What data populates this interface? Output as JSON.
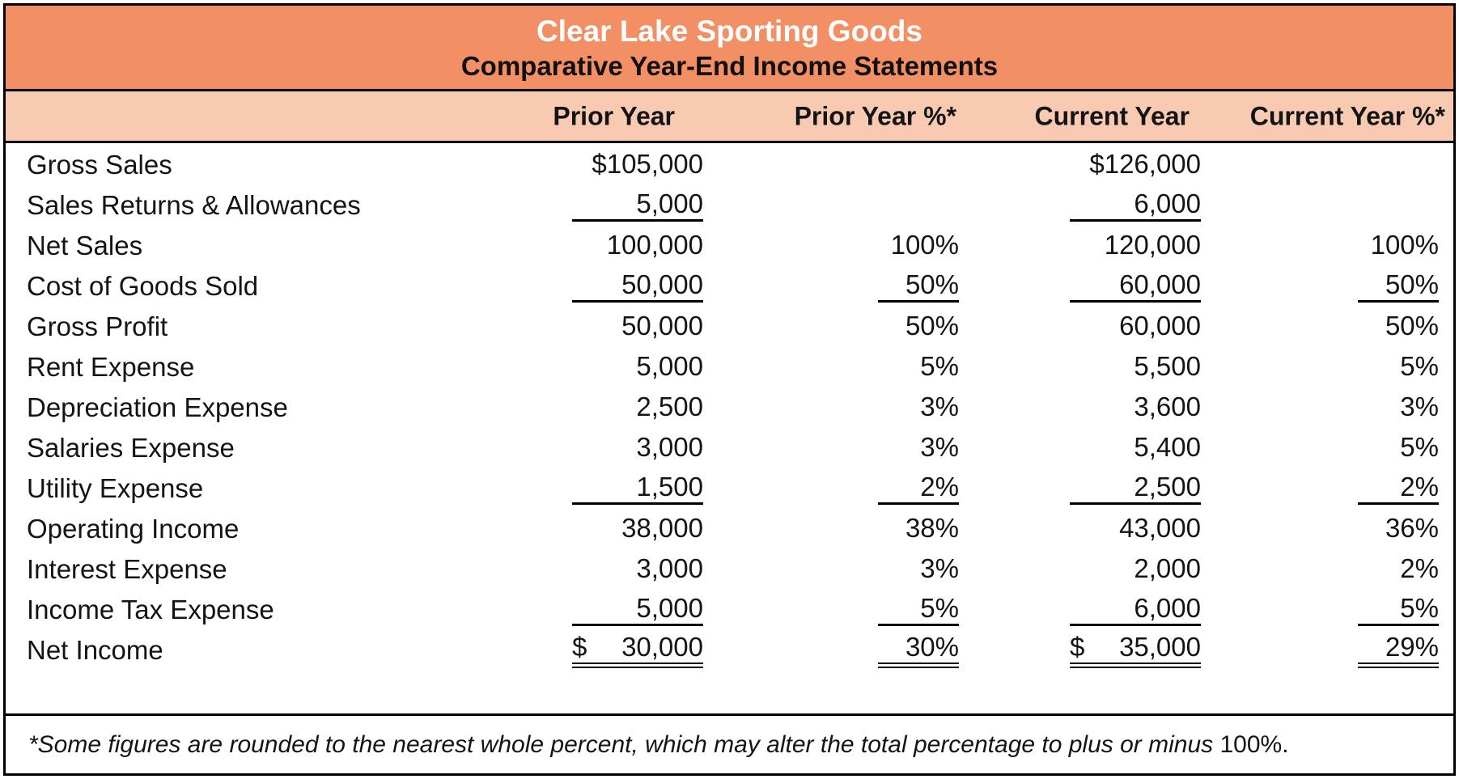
{
  "title": {
    "line1": "Clear Lake Sporting Goods",
    "line2": "Comparative Year-End Income Statements"
  },
  "columns": {
    "prior_year": "Prior Year",
    "prior_year_pct": "Prior Year %*",
    "current_year": "Current Year",
    "current_year_pct": "Current Year %*"
  },
  "rows": [
    {
      "label": "Gross Sales",
      "py": "$105,000",
      "pyp": "",
      "cy": "$126,000",
      "cyp": ""
    },
    {
      "label": "Sales Returns & Allowances",
      "py": "5,000",
      "pyp": "",
      "cy": "6,000",
      "cyp": ""
    },
    {
      "label": "Net Sales",
      "py": "100,000",
      "pyp": "100%",
      "cy": "120,000",
      "cyp": "100%"
    },
    {
      "label": "Cost of Goods Sold",
      "py": "50,000",
      "pyp": "50%",
      "cy": "60,000",
      "cyp": "50%"
    },
    {
      "label": "Gross Profit",
      "py": "50,000",
      "pyp": "50%",
      "cy": "60,000",
      "cyp": "50%"
    },
    {
      "label": "Rent Expense",
      "py": "5,000",
      "pyp": "5%",
      "cy": "5,500",
      "cyp": "5%"
    },
    {
      "label": "Depreciation Expense",
      "py": "2,500",
      "pyp": "3%",
      "cy": "3,600",
      "cyp": "3%"
    },
    {
      "label": "Salaries Expense",
      "py": "3,000",
      "pyp": "3%",
      "cy": "5,400",
      "cyp": "5%"
    },
    {
      "label": "Utility Expense",
      "py": "1,500",
      "pyp": "2%",
      "cy": "2,500",
      "cyp": "2%"
    },
    {
      "label": "Operating Income",
      "py": "38,000",
      "pyp": "38%",
      "cy": "43,000",
      "cyp": "36%"
    },
    {
      "label": "Interest Expense",
      "py": "3,000",
      "pyp": "3%",
      "cy": "2,000",
      "cyp": "2%"
    },
    {
      "label": "Income Tax Expense",
      "py": "5,000",
      "pyp": "5%",
      "cy": "6,000",
      "cyp": "5%"
    },
    {
      "label": "Net Income",
      "dollar": "$",
      "py": "30,000",
      "pyp": "30%",
      "cy": "35,000",
      "cyp": "29%"
    }
  ],
  "footnote": {
    "italic": "*Some figures are rounded to the nearest whole percent, which may alter the total percentage to plus or minus ",
    "upright": "100%."
  },
  "colors": {
    "title_band": "#F28F65",
    "column_header_band": "#F9CAB2",
    "border": "#000000",
    "title_text": "#FFFFFF",
    "body_text": "#141414"
  }
}
